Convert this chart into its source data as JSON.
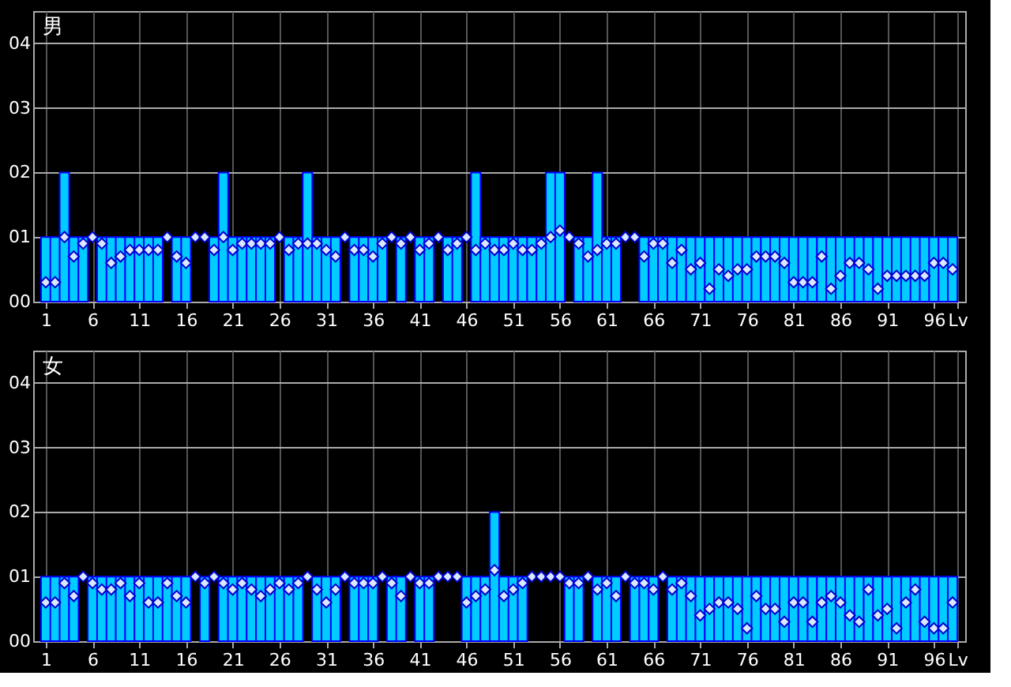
{
  "chart_data": [
    {
      "type": "bar",
      "title": "男",
      "x": [
        1,
        2,
        3,
        4,
        5,
        6,
        7,
        8,
        9,
        10,
        11,
        12,
        13,
        14,
        15,
        16,
        17,
        18,
        19,
        20,
        21,
        22,
        23,
        24,
        25,
        26,
        27,
        28,
        29,
        30,
        31,
        32,
        33,
        34,
        35,
        36,
        37,
        38,
        39,
        40,
        41,
        42,
        43,
        44,
        45,
        46,
        47,
        48,
        49,
        50,
        51,
        52,
        53,
        54,
        55,
        56,
        57,
        58,
        59,
        60,
        61,
        62,
        63,
        64,
        65,
        66,
        67,
        68,
        69,
        70,
        71,
        72,
        73,
        74,
        75,
        76,
        77,
        78,
        79,
        80,
        81,
        82,
        83,
        84,
        85,
        86,
        87,
        88,
        89,
        90,
        91,
        92,
        93,
        94,
        95,
        96,
        97,
        98
      ],
      "xlim": [
        0.5,
        98.5
      ],
      "xticks": [
        1,
        6,
        11,
        16,
        21,
        26,
        31,
        36,
        41,
        46,
        51,
        56,
        61,
        66,
        71,
        76,
        81,
        86,
        91,
        96,
        {
          "value": 98.5,
          "label": "Lv"
        }
      ],
      "ylim": [
        0,
        4.5
      ],
      "yticks": [
        {
          "value": 0,
          "label": "00"
        },
        {
          "value": 1,
          "label": "01"
        },
        {
          "value": 2,
          "label": "02"
        },
        {
          "value": 3,
          "label": "03"
        },
        {
          "value": 4,
          "label": "04"
        }
      ],
      "grid": true,
      "series": [
        {
          "color": "#00ccff",
          "values": [
            1,
            1,
            2,
            1,
            1,
            0,
            1,
            1,
            1,
            1,
            1,
            1,
            1,
            0,
            1,
            1,
            0,
            0,
            1,
            2,
            1,
            1,
            1,
            1,
            1,
            0,
            1,
            1,
            2,
            1,
            1,
            1,
            0,
            1,
            1,
            1,
            1,
            0,
            1,
            0,
            1,
            1,
            0,
            1,
            1,
            0,
            2,
            1,
            1,
            1,
            1,
            1,
            1,
            1,
            2,
            2,
            0,
            1,
            1,
            2,
            1,
            1,
            0,
            0,
            1,
            1,
            1,
            1,
            1,
            1,
            1,
            1,
            1,
            1,
            1,
            1,
            1,
            1,
            1,
            1,
            1,
            1,
            1,
            1,
            1,
            1,
            1,
            1,
            1,
            1,
            1,
            1,
            1,
            1,
            1,
            1,
            1,
            1
          ]
        },
        {
          "type": "scatter",
          "marker": "diamond",
          "color": "#d8e8ff",
          "values": [
            0.3,
            0.3,
            1.0,
            0.7,
            0.9,
            1.0,
            0.9,
            0.6,
            0.7,
            0.8,
            0.8,
            0.8,
            0.8,
            1.0,
            0.7,
            0.6,
            1.0,
            1.0,
            0.8,
            1.0,
            0.8,
            0.9,
            0.9,
            0.9,
            0.9,
            1.0,
            0.8,
            0.9,
            0.9,
            0.9,
            0.8,
            0.7,
            1.0,
            0.8,
            0.8,
            0.7,
            0.9,
            1.0,
            0.9,
            1.0,
            0.8,
            0.9,
            1.0,
            0.8,
            0.9,
            1.0,
            0.8,
            0.9,
            0.8,
            0.8,
            0.9,
            0.8,
            0.8,
            0.9,
            1.0,
            1.1,
            1.0,
            0.9,
            0.7,
            0.8,
            0.9,
            0.9,
            1.0,
            1.0,
            0.7,
            0.9,
            0.9,
            0.6,
            0.8,
            0.5,
            0.6,
            0.2,
            0.5,
            0.4,
            0.5,
            0.5,
            0.7,
            0.7,
            0.7,
            0.6,
            0.3,
            0.3,
            0.3,
            0.7,
            0.2,
            0.4,
            0.6,
            0.6,
            0.5,
            0.2,
            0.4,
            0.4,
            0.4,
            0.4,
            0.4,
            0.6,
            0.6,
            0.5
          ]
        }
      ]
    },
    {
      "type": "bar",
      "title": "女",
      "x": [
        1,
        2,
        3,
        4,
        5,
        6,
        7,
        8,
        9,
        10,
        11,
        12,
        13,
        14,
        15,
        16,
        17,
        18,
        19,
        20,
        21,
        22,
        23,
        24,
        25,
        26,
        27,
        28,
        29,
        30,
        31,
        32,
        33,
        34,
        35,
        36,
        37,
        38,
        39,
        40,
        41,
        42,
        43,
        44,
        45,
        46,
        47,
        48,
        49,
        50,
        51,
        52,
        53,
        54,
        55,
        56,
        57,
        58,
        59,
        60,
        61,
        62,
        63,
        64,
        65,
        66,
        67,
        68,
        69,
        70,
        71,
        72,
        73,
        74,
        75,
        76,
        77,
        78,
        79,
        80,
        81,
        82,
        83,
        84,
        85,
        86,
        87,
        88,
        89,
        90,
        91,
        92,
        93,
        94,
        95,
        96,
        97,
        98
      ],
      "xlim": [
        0.5,
        98.5
      ],
      "xticks": [
        1,
        6,
        11,
        16,
        21,
        26,
        31,
        36,
        41,
        46,
        51,
        56,
        61,
        66,
        71,
        76,
        81,
        86,
        91,
        96,
        {
          "value": 98.5,
          "label": "Lv"
        }
      ],
      "ylim": [
        0,
        4.5
      ],
      "yticks": [
        {
          "value": 0,
          "label": "00"
        },
        {
          "value": 1,
          "label": "01"
        },
        {
          "value": 2,
          "label": "02"
        },
        {
          "value": 3,
          "label": "03"
        },
        {
          "value": 4,
          "label": "04"
        }
      ],
      "grid": true,
      "series": [
        {
          "color": "#00ccff",
          "values": [
            1,
            1,
            1,
            1,
            0,
            1,
            1,
            1,
            1,
            1,
            1,
            1,
            1,
            1,
            1,
            1,
            0,
            1,
            0,
            1,
            1,
            1,
            1,
            1,
            1,
            1,
            1,
            1,
            0,
            1,
            1,
            1,
            0,
            1,
            1,
            1,
            0,
            1,
            1,
            0,
            1,
            1,
            0,
            0,
            0,
            1,
            1,
            1,
            2,
            1,
            1,
            1,
            0,
            0,
            0,
            0,
            1,
            1,
            0,
            1,
            1,
            1,
            0,
            1,
            1,
            1,
            0,
            1,
            1,
            1,
            1,
            1,
            1,
            1,
            1,
            1,
            1,
            1,
            1,
            1,
            1,
            1,
            1,
            1,
            1,
            1,
            1,
            1,
            1,
            1,
            1,
            1,
            1,
            1,
            1,
            1,
            1,
            1
          ]
        },
        {
          "type": "scatter",
          "marker": "diamond",
          "color": "#d8e8ff",
          "values": [
            0.6,
            0.6,
            0.9,
            0.7,
            1.0,
            0.9,
            0.8,
            0.8,
            0.9,
            0.7,
            0.9,
            0.6,
            0.6,
            0.9,
            0.7,
            0.6,
            1.0,
            0.9,
            1.0,
            0.9,
            0.8,
            0.9,
            0.8,
            0.7,
            0.8,
            0.9,
            0.8,
            0.9,
            1.0,
            0.8,
            0.6,
            0.8,
            1.0,
            0.9,
            0.9,
            0.9,
            1.0,
            0.9,
            0.7,
            1.0,
            0.9,
            0.9,
            1.0,
            1.0,
            1.0,
            0.6,
            0.7,
            0.8,
            1.1,
            0.7,
            0.8,
            0.9,
            1.0,
            1.0,
            1.0,
            1.0,
            0.9,
            0.9,
            1.0,
            0.8,
            0.9,
            0.7,
            1.0,
            0.9,
            0.9,
            0.8,
            1.0,
            0.8,
            0.9,
            0.7,
            0.4,
            0.5,
            0.6,
            0.6,
            0.5,
            0.2,
            0.7,
            0.5,
            0.5,
            0.3,
            0.6,
            0.6,
            0.3,
            0.6,
            0.7,
            0.6,
            0.4,
            0.3,
            0.8,
            0.4,
            0.5,
            0.2,
            0.6,
            0.8,
            0.3,
            0.2,
            0.2,
            0.6
          ]
        }
      ]
    }
  ]
}
